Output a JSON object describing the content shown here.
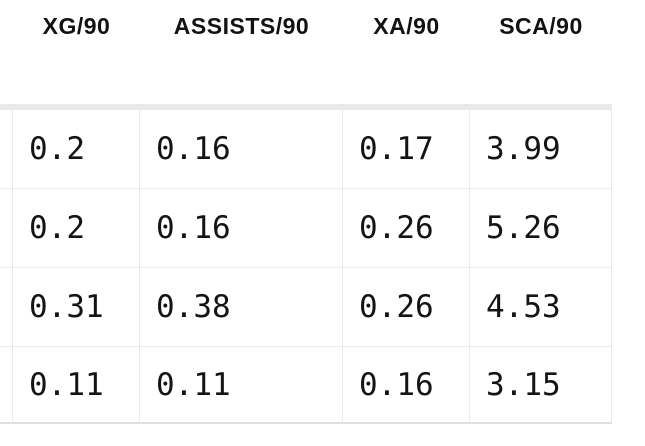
{
  "table": {
    "headers": [
      "XG/90",
      "ASSISTS/90",
      "XA/90",
      "SCA/90"
    ],
    "rows": [
      [
        "0.2",
        "0.16",
        "0.17",
        "3.99"
      ],
      [
        "0.2",
        "0.16",
        "0.26",
        "5.26"
      ],
      [
        "0.31",
        "0.38",
        "0.26",
        "4.53"
      ],
      [
        "0.11",
        "0.11",
        "0.16",
        "3.15"
      ]
    ]
  },
  "colors": {
    "background": "#ffffff",
    "text": "#141414",
    "header_text": "#121212",
    "grid_line": "#ebebeb",
    "header_band": "#e9e9e9",
    "bottom_border": "#e0e0e0"
  }
}
